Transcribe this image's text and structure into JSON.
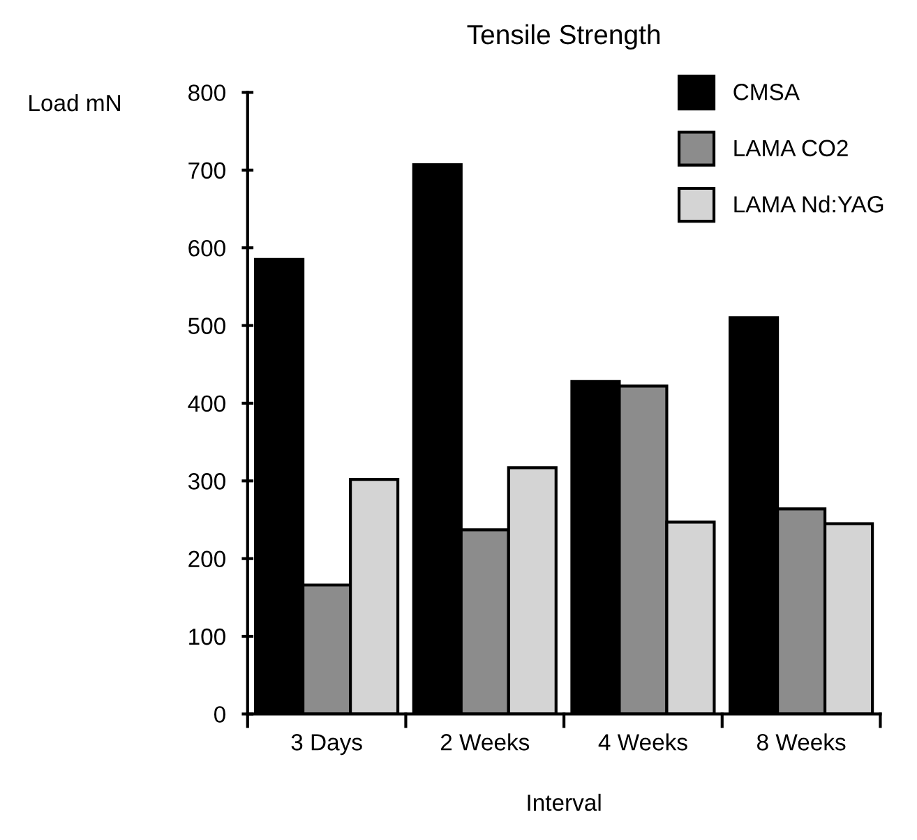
{
  "chart_data": {
    "type": "bar",
    "title": "Tensile Strength",
    "xlabel": "Interval",
    "ylabel": "Load mN",
    "categories": [
      "3 Days",
      "2 Weeks",
      "4 Weeks",
      "8 Weeks"
    ],
    "series": [
      {
        "name": "CMSA",
        "color": "#000000",
        "values": [
          585,
          707,
          428,
          510
        ]
      },
      {
        "name": "LAMA CO2",
        "color": "#8c8c8c",
        "values": [
          166,
          237,
          422,
          264
        ]
      },
      {
        "name": "LAMA Nd:YAG",
        "color": "#d4d4d4",
        "values": [
          302,
          317,
          247,
          245
        ]
      }
    ],
    "ylim": [
      0,
      800
    ],
    "yticks": [
      0,
      100,
      200,
      300,
      400,
      500,
      600,
      700,
      800
    ],
    "grid": false,
    "legend": "top right"
  }
}
